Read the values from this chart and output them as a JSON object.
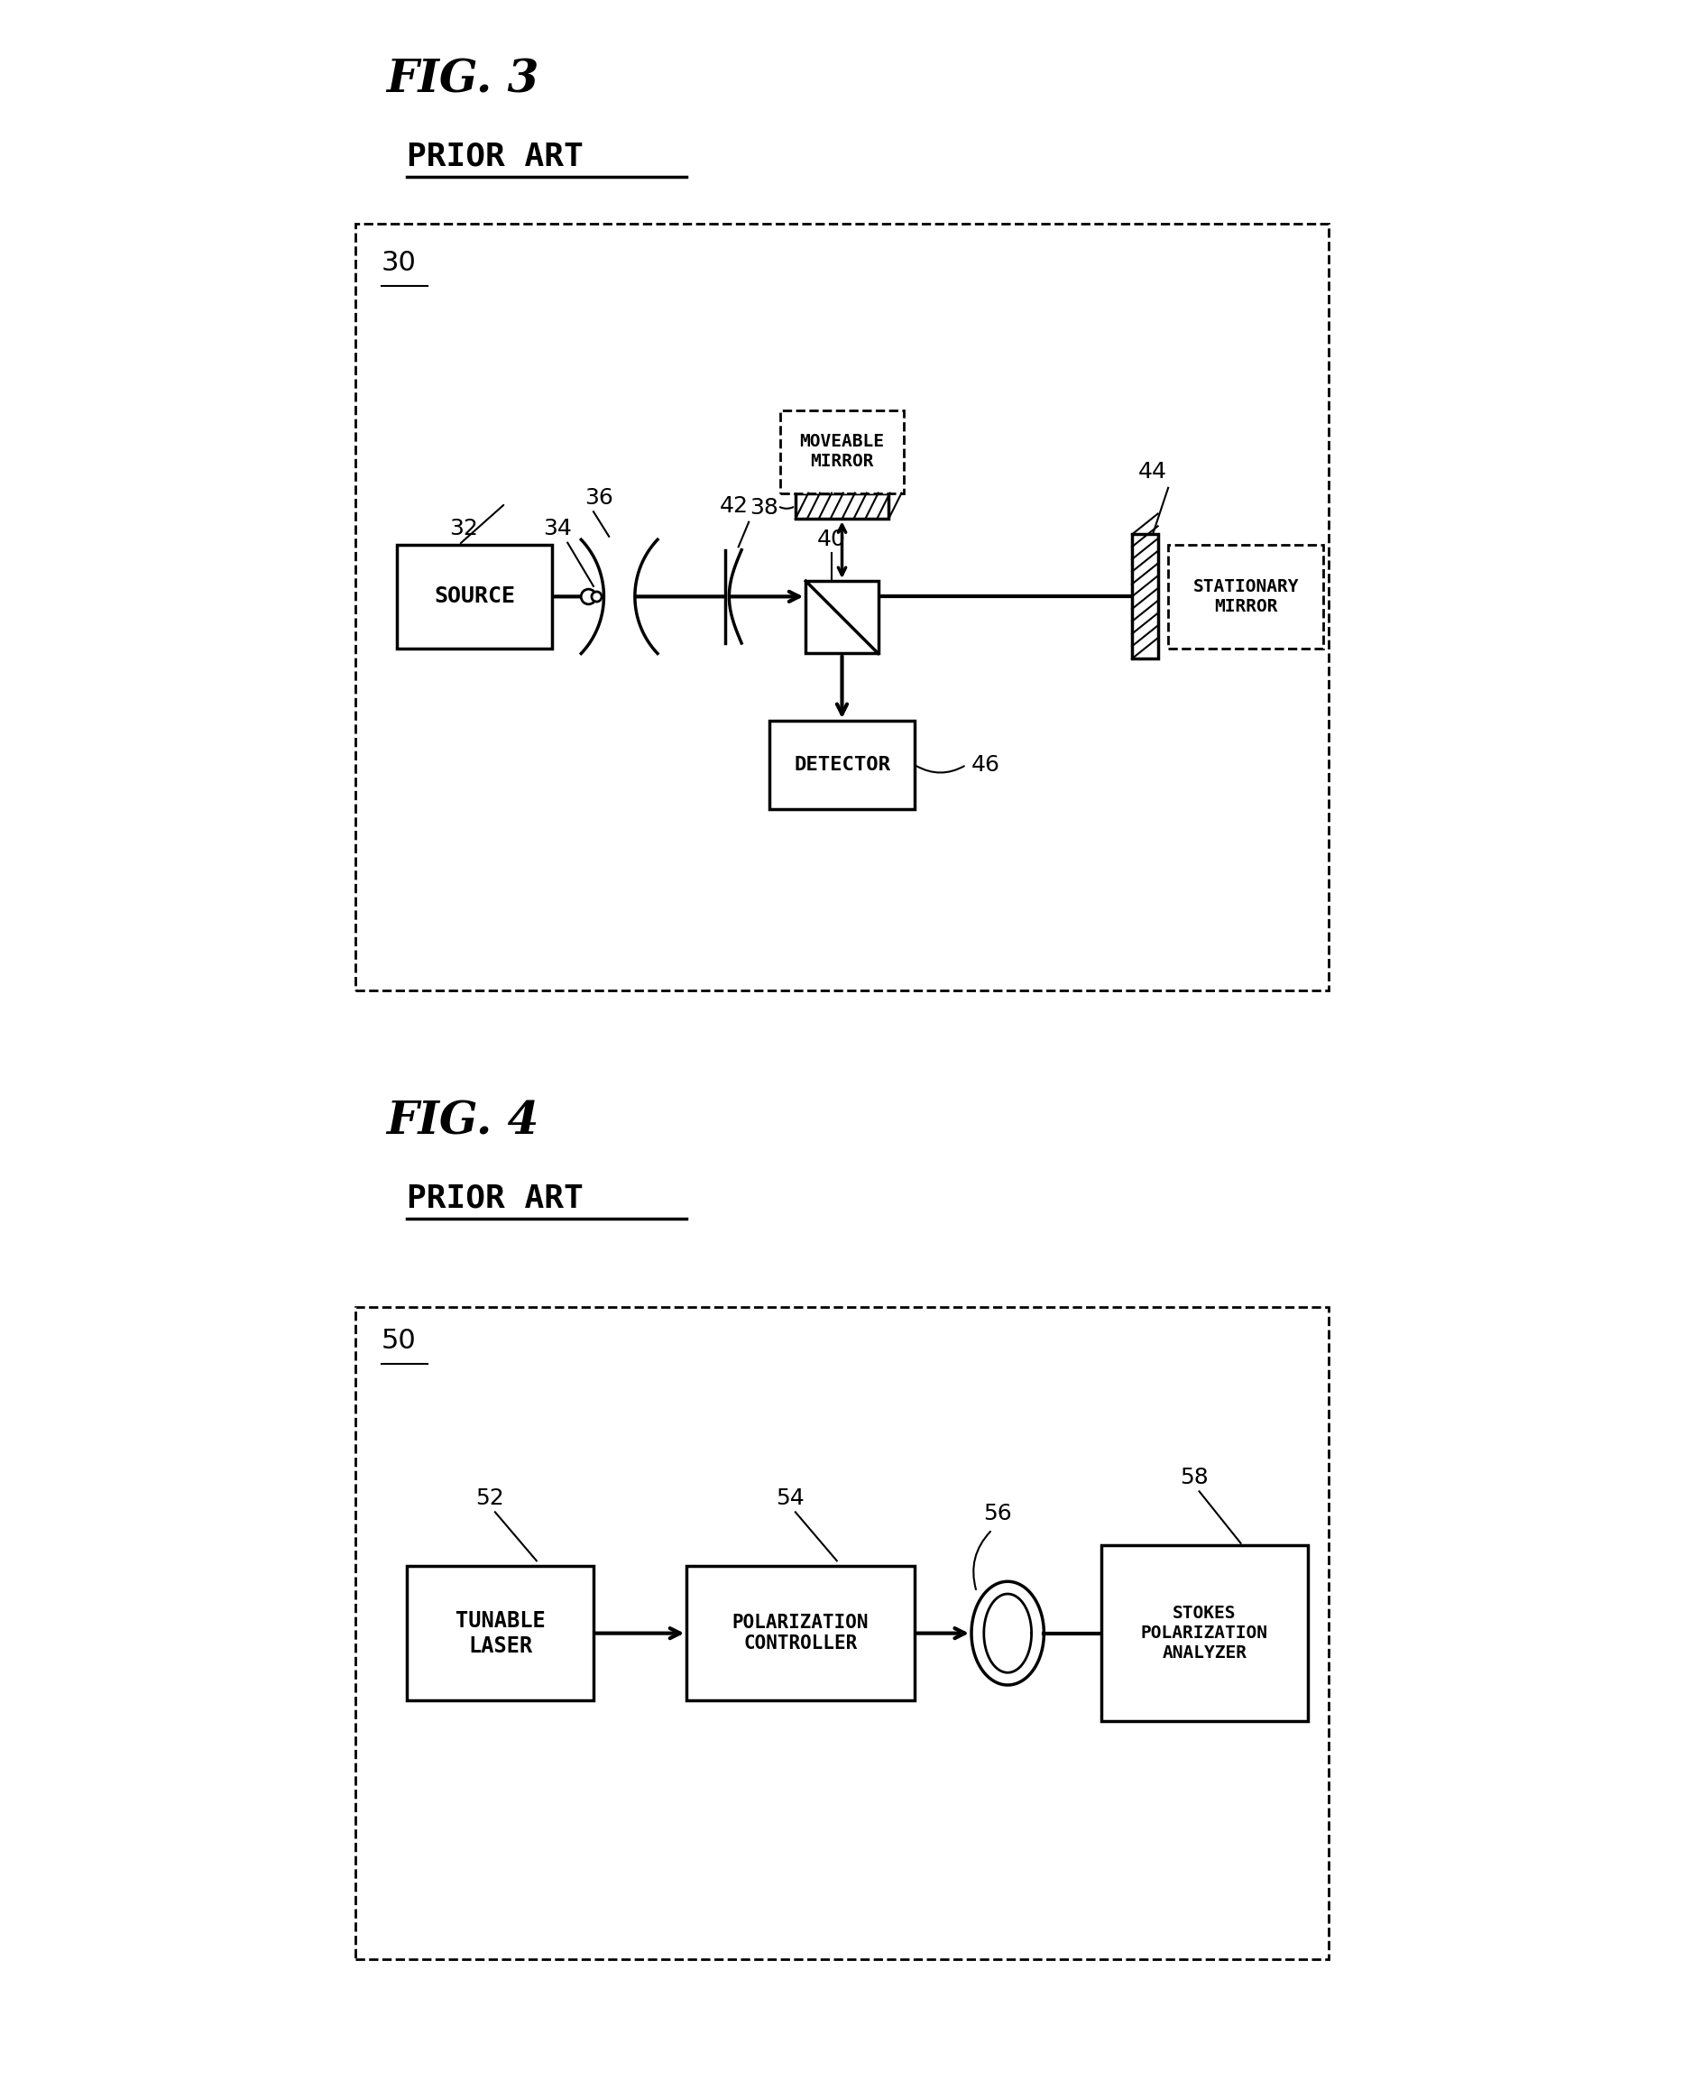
{
  "fig3_title": "FIG. 3",
  "fig4_title": "FIG. 4",
  "prior_art": "PRIOR ART",
  "fig3_label": "30",
  "fig4_label": "50",
  "background_color": "#ffffff",
  "line_color": "#000000",
  "fig3_components": {
    "source": {
      "label": "SOURCE",
      "ref": "32"
    },
    "lens1": {
      "ref": "34"
    },
    "lens2": {
      "label": "",
      "ref": "36"
    },
    "lens3": {
      "label": "",
      "ref": "38"
    },
    "beamsplitter": {
      "label": "",
      "ref": "40"
    },
    "moveable_mirror_box": {
      "label": "MOVEABLE\nMIRROR"
    },
    "moveable_mirror": {
      "ref": "42"
    },
    "stationary_mirror": {
      "label": "STATIONARY\nMIRROR",
      "ref": "44"
    },
    "detector": {
      "label": "DETECTOR",
      "ref": "46"
    }
  },
  "fig4_components": {
    "tunable_laser": {
      "label": "TUNABLE\nLASER",
      "ref": "52"
    },
    "pol_controller": {
      "label": "POLARIZATION\nCONTROLLER",
      "ref": "54"
    },
    "fiber": {
      "ref": "56"
    },
    "stokes": {
      "label": "STOKES\nPOLARIZATION\nANALYZER",
      "ref": "58"
    }
  }
}
